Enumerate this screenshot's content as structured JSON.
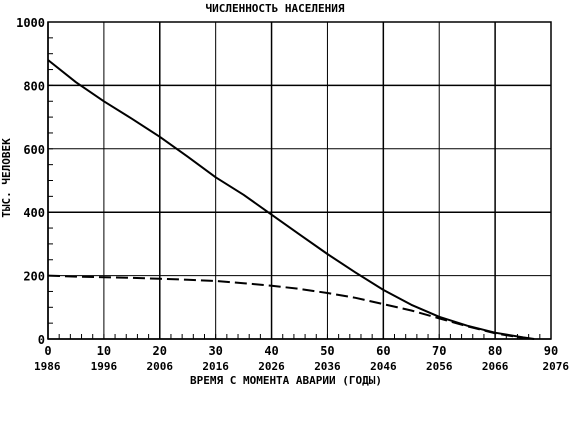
{
  "chart_data": {
    "type": "line",
    "title": "ЧИСЛЕННОСТЬ НАСЕЛЕНИЯ",
    "xlabel": "ВРЕМЯ С МОМЕНТА АВАРИИ (ГОДЫ)",
    "ylabel": "ТЫС. ЧЕЛОВЕК",
    "xlim": [
      0,
      90
    ],
    "ylim": [
      0,
      1000
    ],
    "x_ticks": [
      "0",
      "10",
      "20",
      "30",
      "40",
      "50",
      "60",
      "70",
      "80",
      "90"
    ],
    "x_ticks_secondary": [
      "1986",
      "1996",
      "2006",
      "2016",
      "2026",
      "2036",
      "2046",
      "2056",
      "2066",
      "2076"
    ],
    "y_ticks": [
      "0",
      "200",
      "400",
      "600",
      "800",
      "1000"
    ],
    "grid": true,
    "series": [
      {
        "style": "solid",
        "x": [
          0,
          5,
          10,
          15,
          20,
          25,
          30,
          35,
          40,
          45,
          50,
          55,
          60,
          65,
          70,
          75,
          80,
          85,
          87
        ],
        "y": [
          880,
          810,
          750,
          695,
          638,
          575,
          510,
          455,
          392,
          330,
          268,
          210,
          155,
          108,
          70,
          42,
          20,
          5,
          0
        ]
      },
      {
        "style": "dashed",
        "x": [
          0,
          5,
          10,
          15,
          20,
          25,
          30,
          35,
          40,
          45,
          50,
          55,
          60,
          65,
          70,
          75,
          80,
          85
        ],
        "y": [
          200,
          197,
          195,
          193,
          190,
          187,
          183,
          176,
          168,
          158,
          145,
          130,
          110,
          90,
          65,
          40,
          18,
          3
        ]
      }
    ]
  }
}
